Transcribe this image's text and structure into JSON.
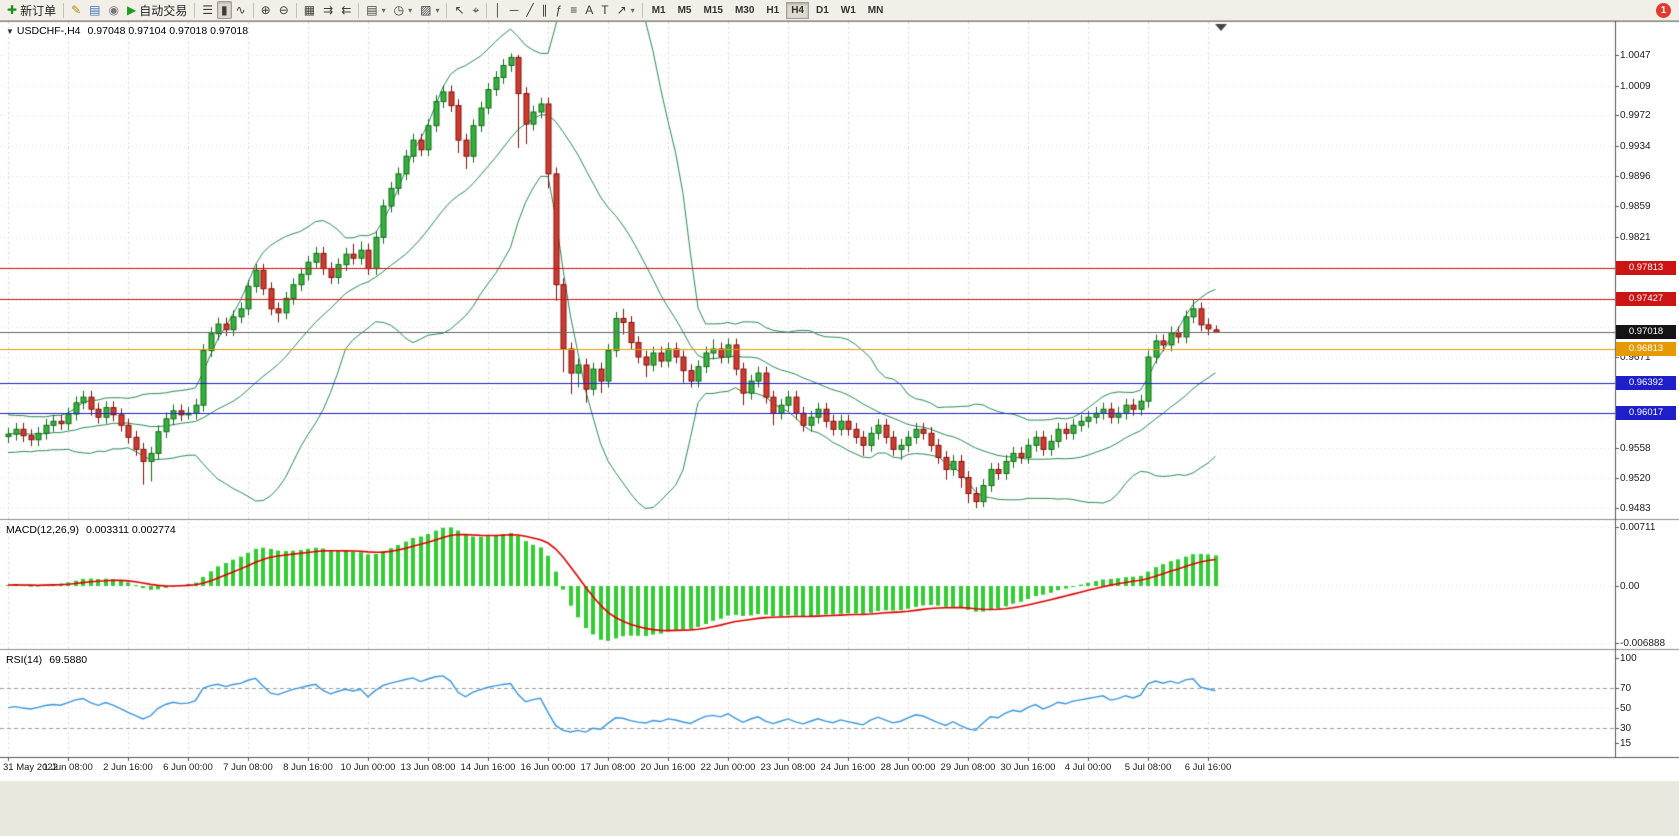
{
  "colors": {
    "bull_body": "#35b13c",
    "bull_border": "#146b1a",
    "bear_body": "#d23a2e",
    "bear_border": "#7c150e",
    "bollinger": "#2c8a57",
    "macd_hist": "#33cc33",
    "macd_signal": "#e00000",
    "rsi_line": "#3a96dd",
    "grid": "#d9d7d0",
    "panel_bg": "#ffffff",
    "toolbar_bg": "#f1efe8",
    "red_line": "#cc1414",
    "orange_line": "#e59a00",
    "blue_line": "#1e1ecb"
  },
  "toolbar": {
    "new_order": {
      "label": "新订单",
      "glyph": "✚",
      "color": "#1d8f1d"
    },
    "left_icons": [
      {
        "name": "metaeditor",
        "glyph": "✎",
        "color": "#b8860b"
      },
      {
        "name": "market-watch",
        "glyph": "▤",
        "color": "#3b6fb5"
      },
      {
        "name": "community",
        "glyph": "◉",
        "color": "#777777"
      }
    ],
    "autotrading": {
      "label": "自动交易",
      "glyph": "▶",
      "color": "#1d9f1d"
    },
    "chart_type_icons": [
      {
        "name": "bars-chart",
        "glyph": "☰"
      },
      {
        "name": "candlestick-chart",
        "glyph": "▮",
        "pressed": true
      },
      {
        "name": "line-chart",
        "glyph": "∿"
      }
    ],
    "zoom_icons": [
      {
        "name": "zoom-in",
        "glyph": "⊕"
      },
      {
        "name": "zoom-out",
        "glyph": "⊖"
      }
    ],
    "window_icons": [
      {
        "name": "tile-windows",
        "glyph": "▦"
      },
      {
        "name": "auto-scroll",
        "glyph": "⇉"
      },
      {
        "name": "chart-shift",
        "glyph": "⇇"
      }
    ],
    "dropdown_icons": [
      {
        "name": "new-chart",
        "glyph": "▤",
        "caret": true
      },
      {
        "name": "periods",
        "glyph": "◷",
        "caret": true
      },
      {
        "name": "templates",
        "glyph": "▨",
        "caret": true
      }
    ],
    "cursor_icons": [
      {
        "name": "cursor",
        "glyph": "↖"
      },
      {
        "name": "crosshair",
        "glyph": "⌖"
      }
    ],
    "object_icons": [
      {
        "name": "vertical-line",
        "glyph": "│"
      },
      {
        "name": "horizontal-line",
        "glyph": "─"
      },
      {
        "name": "trendline",
        "glyph": "╱"
      },
      {
        "name": "equidistant-channel",
        "glyph": "∥"
      },
      {
        "name": "fibonacci",
        "glyph": "ƒ"
      },
      {
        "name": "cycle-lines",
        "glyph": "≡"
      },
      {
        "name": "text",
        "glyph": "A"
      },
      {
        "name": "text-label",
        "glyph": "T"
      },
      {
        "name": "arrows",
        "glyph": "↗",
        "caret": true
      }
    ],
    "timeframes": [
      "M1",
      "M5",
      "M15",
      "M30",
      "H1",
      "H4",
      "D1",
      "W1",
      "MN"
    ],
    "active_timeframe": "H4",
    "notification_count": "1"
  },
  "chart": {
    "collapse_glyph": "▼",
    "symbol_period": "USDCHF-,H4",
    "ohlc": "0.97048 0.97104 0.97018 0.97018",
    "price_scale_ticks": [
      "1.0047",
      "1.0009",
      "0.9972",
      "0.9934",
      "0.9896",
      "0.9859",
      "0.9821",
      "0.9671",
      "0.9596",
      "0.9558",
      "0.9520",
      "0.9483"
    ],
    "price_grid": [
      1.0047,
      1.0009,
      0.9972,
      0.9934,
      0.9896,
      0.9859,
      0.9821,
      0.9783,
      0.9746,
      0.9708,
      0.9671,
      0.9633,
      0.9596,
      0.9558,
      0.952,
      0.9483
    ],
    "price_lines": [
      {
        "label": "0.97813",
        "price": 0.97813,
        "color": "#cc1414"
      },
      {
        "label": "0.97427",
        "price": 0.97427,
        "color": "#cc1414"
      },
      {
        "label": "0.96813",
        "price": 0.96813,
        "color": "#e59a00"
      },
      {
        "label": "0.96392",
        "price": 0.96392,
        "color": "#1e1ecb"
      },
      {
        "label": "0.96017",
        "price": 0.96017,
        "color": "#1e1ecb"
      }
    ],
    "current_price": {
      "label": "0.97018",
      "price": 0.97018,
      "badge_color": "#141414",
      "line_color": "#666666"
    },
    "macd": {
      "name": "MACD(12,26,9)",
      "values": "0.003311 0.002774",
      "scale": [
        {
          "label": "0.00711",
          "value": 0.00711
        },
        {
          "label": "0.00",
          "value": 0
        },
        {
          "label": "-0.006888",
          "value": -0.006888
        }
      ]
    },
    "rsi": {
      "name": "RSI(14)",
      "value": "69.5880",
      "scale": [
        {
          "label": "100",
          "value": 100
        },
        {
          "label": "70",
          "value": 70
        },
        {
          "label": "50",
          "value": 50
        },
        {
          "label": "30",
          "value": 30
        },
        {
          "label": "15",
          "value": 15
        }
      ],
      "levels": [
        70,
        30
      ]
    }
  },
  "chart_data": {
    "type": "candlestick",
    "symbol": "USDCHF-",
    "timeframe": "H4",
    "y_range": [
      0.9469,
      1.0088
    ],
    "bars_per_label": 8,
    "x_labels": [
      "31 May 2022",
      "1 Jun 08:00",
      "2 Jun 16:00",
      "6 Jun 00:00",
      "7 Jun 08:00",
      "8 Jun 16:00",
      "10 Jun 00:00",
      "13 Jun 08:00",
      "14 Jun 16:00",
      "16 Jun 00:00",
      "17 Jun 08:00",
      "20 Jun 16:00",
      "22 Jun 00:00",
      "23 Jun 08:00",
      "24 Jun 16:00",
      "28 Jun 00:00",
      "29 Jun 08:00",
      "30 Jun 16:00",
      "4 Jul 00:00",
      "5 Jul 08:00",
      "6 Jul 16:00"
    ],
    "indicators": {
      "bollinger_period": 20,
      "bollinger_dev": 2,
      "macd": [
        12,
        26,
        9
      ],
      "rsi_period": 14
    },
    "candles": [
      [
        0.9572,
        0.9583,
        0.9564,
        0.9575
      ],
      [
        0.9575,
        0.9589,
        0.9567,
        0.9581
      ],
      [
        0.9581,
        0.9589,
        0.9565,
        0.9573
      ],
      [
        0.9573,
        0.9581,
        0.956,
        0.9568
      ],
      [
        0.9568,
        0.9584,
        0.956,
        0.9576
      ],
      [
        0.9576,
        0.9594,
        0.9568,
        0.9586
      ],
      [
        0.9586,
        0.9599,
        0.9578,
        0.9591
      ],
      [
        0.9591,
        0.9599,
        0.958,
        0.9588
      ],
      [
        0.9588,
        0.9608,
        0.958,
        0.96
      ],
      [
        0.96,
        0.9622,
        0.9592,
        0.9614
      ],
      [
        0.9614,
        0.9629,
        0.9606,
        0.9621
      ],
      [
        0.9621,
        0.9629,
        0.9598,
        0.9606
      ],
      [
        0.9606,
        0.9614,
        0.9588,
        0.9596
      ],
      [
        0.9596,
        0.9616,
        0.9588,
        0.9608
      ],
      [
        0.9608,
        0.9616,
        0.9591,
        0.9599
      ],
      [
        0.9599,
        0.9607,
        0.9578,
        0.9586
      ],
      [
        0.9586,
        0.9594,
        0.9563,
        0.9571
      ],
      [
        0.9571,
        0.9579,
        0.9548,
        0.9556
      ],
      [
        0.9556,
        0.9564,
        0.9512,
        0.9541
      ],
      [
        0.9541,
        0.9559,
        0.9516,
        0.9551
      ],
      [
        0.9551,
        0.9586,
        0.9543,
        0.9578
      ],
      [
        0.9578,
        0.9602,
        0.957,
        0.9594
      ],
      [
        0.9594,
        0.9612,
        0.9586,
        0.9604
      ],
      [
        0.9604,
        0.9612,
        0.9591,
        0.9599
      ],
      [
        0.9599,
        0.9609,
        0.9593,
        0.9601
      ],
      [
        0.9601,
        0.9619,
        0.9593,
        0.9611
      ],
      [
        0.9611,
        0.9687,
        0.9603,
        0.9679
      ],
      [
        0.9679,
        0.9708,
        0.9671,
        0.97
      ],
      [
        0.97,
        0.972,
        0.9692,
        0.9712
      ],
      [
        0.9712,
        0.972,
        0.9697,
        0.9705
      ],
      [
        0.9705,
        0.9729,
        0.9697,
        0.9721
      ],
      [
        0.9721,
        0.9739,
        0.9713,
        0.9731
      ],
      [
        0.9731,
        0.9767,
        0.9723,
        0.9759
      ],
      [
        0.9759,
        0.9787,
        0.9751,
        0.9779
      ],
      [
        0.9779,
        0.9787,
        0.9748,
        0.9756
      ],
      [
        0.9756,
        0.9764,
        0.9723,
        0.9731
      ],
      [
        0.9731,
        0.9739,
        0.9714,
        0.9726
      ],
      [
        0.9726,
        0.9752,
        0.9718,
        0.9744
      ],
      [
        0.9744,
        0.9769,
        0.9736,
        0.9761
      ],
      [
        0.9761,
        0.9782,
        0.9753,
        0.9774
      ],
      [
        0.9774,
        0.9797,
        0.9766,
        0.9789
      ],
      [
        0.9789,
        0.9808,
        0.9781,
        0.98
      ],
      [
        0.98,
        0.9808,
        0.9773,
        0.9781
      ],
      [
        0.9781,
        0.9789,
        0.9762,
        0.977
      ],
      [
        0.977,
        0.9794,
        0.9762,
        0.9786
      ],
      [
        0.9786,
        0.9807,
        0.9778,
        0.9799
      ],
      [
        0.9799,
        0.9812,
        0.9786,
        0.9794
      ],
      [
        0.9794,
        0.9815,
        0.9786,
        0.9804
      ],
      [
        0.9804,
        0.9812,
        0.9773,
        0.9781
      ],
      [
        0.9781,
        0.9828,
        0.9773,
        0.982
      ],
      [
        0.982,
        0.9867,
        0.9812,
        0.9859
      ],
      [
        0.9859,
        0.9889,
        0.9851,
        0.9881
      ],
      [
        0.9881,
        0.9907,
        0.9873,
        0.9899
      ],
      [
        0.9899,
        0.9929,
        0.9891,
        0.9921
      ],
      [
        0.9921,
        0.9949,
        0.9913,
        0.9941
      ],
      [
        0.9941,
        0.9949,
        0.9921,
        0.9929
      ],
      [
        0.9929,
        0.9967,
        0.9921,
        0.9959
      ],
      [
        0.9959,
        0.9997,
        0.9951,
        0.9989
      ],
      [
        0.9989,
        1.0009,
        0.9981,
        1.0001
      ],
      [
        1.0001,
        1.0009,
        0.9976,
        0.9984
      ],
      [
        0.9984,
        0.9992,
        0.9925,
        0.9941
      ],
      [
        0.9941,
        0.9949,
        0.9905,
        0.9921
      ],
      [
        0.9921,
        0.9967,
        0.9913,
        0.9959
      ],
      [
        0.9959,
        0.9989,
        0.9951,
        0.9981
      ],
      [
        0.9981,
        1.0012,
        0.9973,
        1.0004
      ],
      [
        1.0004,
        1.0027,
        0.9996,
        1.0019
      ],
      [
        1.0019,
        1.0042,
        1.0011,
        1.0034
      ],
      [
        1.0034,
        1.0049,
        1.0026,
        1.0044
      ],
      [
        1.0044,
        1.0047,
        0.9931,
        0.9999
      ],
      [
        0.9999,
        1.0007,
        0.9936,
        0.9961
      ],
      [
        0.9961,
        0.9984,
        0.9953,
        0.9976
      ],
      [
        0.9976,
        0.9994,
        0.9968,
        0.9986
      ],
      [
        0.9986,
        0.9994,
        0.9881,
        0.9899
      ],
      [
        0.9899,
        0.9907,
        0.9741,
        0.9761
      ],
      [
        0.9761,
        0.9769,
        0.9652,
        0.9681
      ],
      [
        0.9681,
        0.9689,
        0.9625,
        0.9651
      ],
      [
        0.9651,
        0.9669,
        0.9633,
        0.9661
      ],
      [
        0.9661,
        0.9669,
        0.9614,
        0.9631
      ],
      [
        0.9631,
        0.9664,
        0.9623,
        0.9656
      ],
      [
        0.9656,
        0.9664,
        0.9626,
        0.9641
      ],
      [
        0.9641,
        0.9687,
        0.9633,
        0.9679
      ],
      [
        0.9679,
        0.9727,
        0.9671,
        0.9719
      ],
      [
        0.9719,
        0.9731,
        0.9699,
        0.9714
      ],
      [
        0.9714,
        0.9722,
        0.9681,
        0.9689
      ],
      [
        0.9689,
        0.9697,
        0.9663,
        0.9671
      ],
      [
        0.9671,
        0.9679,
        0.9646,
        0.9661
      ],
      [
        0.9661,
        0.9684,
        0.9653,
        0.9676
      ],
      [
        0.9676,
        0.9684,
        0.9658,
        0.9666
      ],
      [
        0.9666,
        0.9689,
        0.9658,
        0.9681
      ],
      [
        0.9681,
        0.9689,
        0.9663,
        0.9671
      ],
      [
        0.9671,
        0.9679,
        0.9639,
        0.9654
      ],
      [
        0.9654,
        0.9662,
        0.9633,
        0.9641
      ],
      [
        0.9641,
        0.9667,
        0.9633,
        0.9659
      ],
      [
        0.9659,
        0.9684,
        0.9651,
        0.9676
      ],
      [
        0.9676,
        0.9693,
        0.9668,
        0.9681
      ],
      [
        0.9681,
        0.9689,
        0.9663,
        0.9671
      ],
      [
        0.9671,
        0.9694,
        0.9663,
        0.9686
      ],
      [
        0.9686,
        0.9694,
        0.9648,
        0.9656
      ],
      [
        0.9656,
        0.9664,
        0.9611,
        0.9626
      ],
      [
        0.9626,
        0.9649,
        0.9618,
        0.9641
      ],
      [
        0.9641,
        0.9659,
        0.9633,
        0.9651
      ],
      [
        0.9651,
        0.9659,
        0.9613,
        0.9621
      ],
      [
        0.9621,
        0.9629,
        0.9586,
        0.9601
      ],
      [
        0.9601,
        0.9619,
        0.9593,
        0.9611
      ],
      [
        0.9611,
        0.9629,
        0.9603,
        0.9621
      ],
      [
        0.9621,
        0.9629,
        0.9593,
        0.9601
      ],
      [
        0.9601,
        0.9609,
        0.9578,
        0.9586
      ],
      [
        0.9586,
        0.9604,
        0.9578,
        0.9596
      ],
      [
        0.9596,
        0.9614,
        0.9588,
        0.9606
      ],
      [
        0.9606,
        0.9614,
        0.9583,
        0.9591
      ],
      [
        0.9591,
        0.9599,
        0.9573,
        0.9581
      ],
      [
        0.9581,
        0.9599,
        0.9573,
        0.9591
      ],
      [
        0.9591,
        0.9599,
        0.9573,
        0.9581
      ],
      [
        0.9581,
        0.9589,
        0.9563,
        0.9571
      ],
      [
        0.9571,
        0.9579,
        0.9548,
        0.9561
      ],
      [
        0.9561,
        0.9584,
        0.9553,
        0.9576
      ],
      [
        0.9576,
        0.9594,
        0.9568,
        0.9586
      ],
      [
        0.9586,
        0.9594,
        0.9563,
        0.9571
      ],
      [
        0.9571,
        0.9579,
        0.9548,
        0.9556
      ],
      [
        0.9556,
        0.9569,
        0.9543,
        0.9561
      ],
      [
        0.9561,
        0.9579,
        0.9553,
        0.9571
      ],
      [
        0.9571,
        0.9589,
        0.9563,
        0.9581
      ],
      [
        0.9581,
        0.9589,
        0.9568,
        0.9576
      ],
      [
        0.9576,
        0.9584,
        0.9553,
        0.9561
      ],
      [
        0.9561,
        0.9569,
        0.9538,
        0.9546
      ],
      [
        0.9546,
        0.9554,
        0.9518,
        0.9531
      ],
      [
        0.9531,
        0.9549,
        0.9523,
        0.9541
      ],
      [
        0.9541,
        0.9549,
        0.9508,
        0.9521
      ],
      [
        0.9521,
        0.9529,
        0.9489,
        0.9501
      ],
      [
        0.9501,
        0.9509,
        0.9483,
        0.9491
      ],
      [
        0.9491,
        0.9519,
        0.9484,
        0.9511
      ],
      [
        0.9511,
        0.9539,
        0.9503,
        0.9531
      ],
      [
        0.9531,
        0.9539,
        0.9518,
        0.9526
      ],
      [
        0.9526,
        0.9549,
        0.9518,
        0.9541
      ],
      [
        0.9541,
        0.9559,
        0.9533,
        0.9551
      ],
      [
        0.9551,
        0.9559,
        0.9538,
        0.9546
      ],
      [
        0.9546,
        0.9569,
        0.9538,
        0.9561
      ],
      [
        0.9561,
        0.9579,
        0.9553,
        0.9571
      ],
      [
        0.9571,
        0.9579,
        0.9548,
        0.9556
      ],
      [
        0.9556,
        0.9574,
        0.9548,
        0.9566
      ],
      [
        0.9566,
        0.9589,
        0.9558,
        0.9581
      ],
      [
        0.9581,
        0.9589,
        0.9568,
        0.9576
      ],
      [
        0.9576,
        0.9594,
        0.9568,
        0.9586
      ],
      [
        0.9586,
        0.9599,
        0.9578,
        0.9591
      ],
      [
        0.9591,
        0.9604,
        0.9583,
        0.9596
      ],
      [
        0.9596,
        0.9609,
        0.9588,
        0.9601
      ],
      [
        0.9601,
        0.9614,
        0.9593,
        0.9606
      ],
      [
        0.9606,
        0.9614,
        0.9588,
        0.9596
      ],
      [
        0.9596,
        0.9609,
        0.9588,
        0.9601
      ],
      [
        0.9601,
        0.9619,
        0.9593,
        0.9611
      ],
      [
        0.9611,
        0.9619,
        0.9598,
        0.9606
      ],
      [
        0.9606,
        0.9624,
        0.9598,
        0.9616
      ],
      [
        0.9616,
        0.9679,
        0.9608,
        0.9671
      ],
      [
        0.9671,
        0.9699,
        0.9663,
        0.9691
      ],
      [
        0.9691,
        0.9699,
        0.9678,
        0.9686
      ],
      [
        0.9686,
        0.9709,
        0.9678,
        0.9701
      ],
      [
        0.9701,
        0.9709,
        0.9688,
        0.9696
      ],
      [
        0.9696,
        0.9729,
        0.9688,
        0.9721
      ],
      [
        0.9721,
        0.9742,
        0.9713,
        0.9731
      ],
      [
        0.9731,
        0.9739,
        0.9703,
        0.9711
      ],
      [
        0.9711,
        0.9719,
        0.9698,
        0.9706
      ],
      [
        0.97048,
        0.97104,
        0.97018,
        0.97018
      ]
    ]
  }
}
